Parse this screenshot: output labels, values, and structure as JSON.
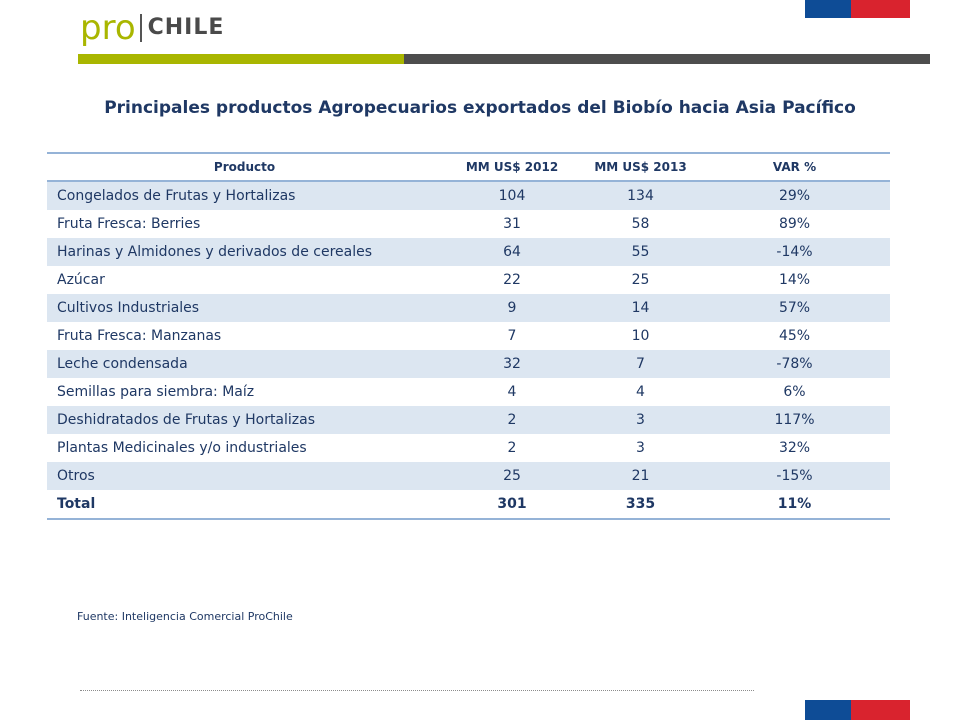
{
  "header": {
    "logo_pro": "pro",
    "logo_chile": "CHILE"
  },
  "title": "Principales productos Agropecuarios exportados del Biobío hacia Asia Pacífico",
  "table": {
    "columns": [
      "Producto",
      "MM US$ 2012",
      "MM US$ 2013",
      "VAR %"
    ],
    "rows": [
      [
        "Congelados de Frutas y Hortalizas",
        "104",
        "134",
        "29%"
      ],
      [
        "Fruta Fresca: Berries",
        "31",
        "58",
        "89%"
      ],
      [
        "Harinas y Almidones y derivados de cereales",
        "64",
        "55",
        "-14%"
      ],
      [
        "Azúcar",
        "22",
        "25",
        "14%"
      ],
      [
        "Cultivos Industriales",
        "9",
        "14",
        "57%"
      ],
      [
        "Fruta Fresca: Manzanas",
        "7",
        "10",
        "45%"
      ],
      [
        "Leche condensada",
        "32",
        "7",
        "-78%"
      ],
      [
        "Semillas para siembra: Maíz",
        "4",
        "4",
        "6%"
      ],
      [
        "Deshidratados  de Frutas y Hortalizas",
        "2",
        "3",
        "117%"
      ],
      [
        "Plantas Medicinales y/o industriales",
        "2",
        "3",
        "32%"
      ],
      [
        "Otros",
        "25",
        "21",
        "-15%"
      ]
    ],
    "total": [
      "Total",
      "301",
      "335",
      "11%"
    ]
  },
  "source": "Fuente: Inteligencia Comercial ProChile",
  "colors": {
    "brand_green": "#a9b600",
    "brand_gray": "#4d4d4d",
    "flag_blue": "#0e4c96",
    "flag_red": "#d9232e",
    "text_navy": "#1f3864",
    "row_band": "#dce6f1"
  }
}
